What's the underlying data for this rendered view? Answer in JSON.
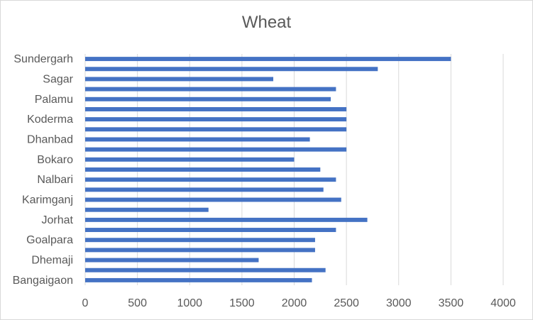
{
  "chart_data": {
    "type": "bar",
    "orientation": "horizontal",
    "title": "Wheat",
    "xlabel": "",
    "ylabel": "",
    "xlim": [
      0,
      4000
    ],
    "x_ticks": [
      0,
      500,
      1000,
      1500,
      2000,
      2500,
      3000,
      3500,
      4000
    ],
    "grid": true,
    "legend": "none",
    "bar_color": "#4472c4",
    "categories_bottom_to_top": [
      "Bangaigaon",
      "",
      "Dhemaji",
      "",
      "Goalpara",
      "",
      "Jorhat",
      "",
      "Karimganj",
      "",
      "Nalbari",
      "",
      "Bokaro",
      "",
      "Dhanbad",
      "",
      "Koderma",
      "",
      "Palamu",
      "",
      "Sagar",
      "",
      "Sundergarh"
    ],
    "values_bottom_to_top": [
      2170,
      2300,
      1660,
      2200,
      2200,
      2400,
      2700,
      1180,
      2450,
      2280,
      2400,
      2250,
      2000,
      2500,
      2150,
      2500,
      2500,
      2500,
      2350,
      2400,
      1800,
      2800,
      3500
    ]
  }
}
